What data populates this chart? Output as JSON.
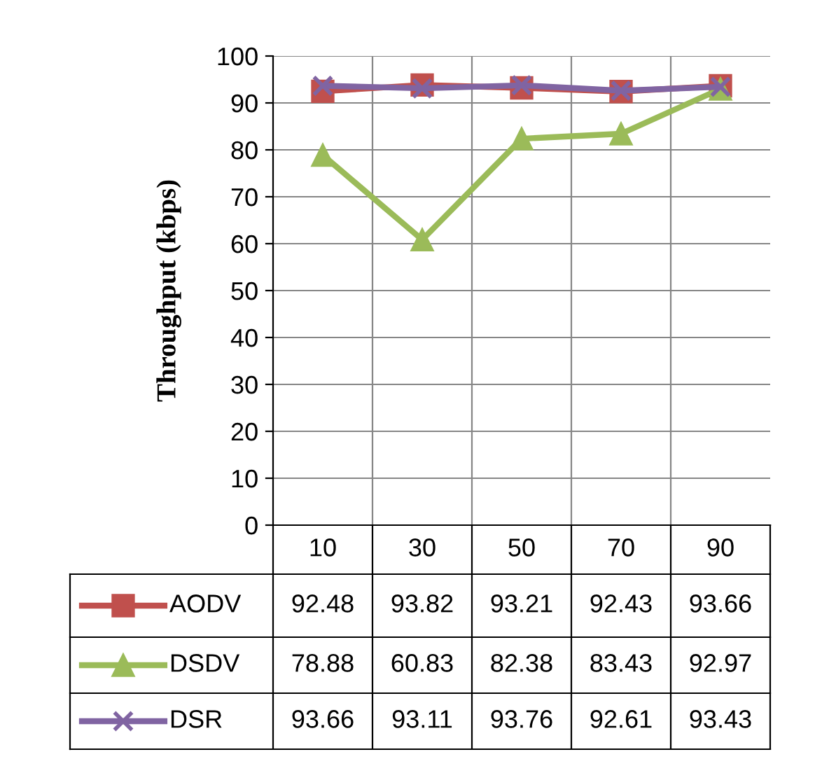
{
  "chart_data": {
    "type": "line",
    "ylabel": "Throughput (kbps)",
    "categories": [
      "10",
      "30",
      "50",
      "70",
      "90"
    ],
    "series": [
      {
        "name": "AODV",
        "color": "#c0504d",
        "marker": "square",
        "values": [
          92.48,
          93.82,
          93.21,
          92.43,
          93.66
        ]
      },
      {
        "name": "DSDV",
        "color": "#9bbb59",
        "marker": "triangle",
        "values": [
          78.88,
          60.83,
          82.38,
          83.43,
          92.97
        ]
      },
      {
        "name": "DSR",
        "color": "#8064a2",
        "marker": "cross",
        "values": [
          93.66,
          93.11,
          93.76,
          92.61,
          93.43
        ]
      }
    ],
    "ylim": [
      0,
      100
    ],
    "yticks": [
      0,
      10,
      20,
      30,
      40,
      50,
      60,
      70,
      80,
      90,
      100
    ],
    "grid": true,
    "data_labels": true,
    "legend": "bottom left",
    "line_style": "solid"
  }
}
